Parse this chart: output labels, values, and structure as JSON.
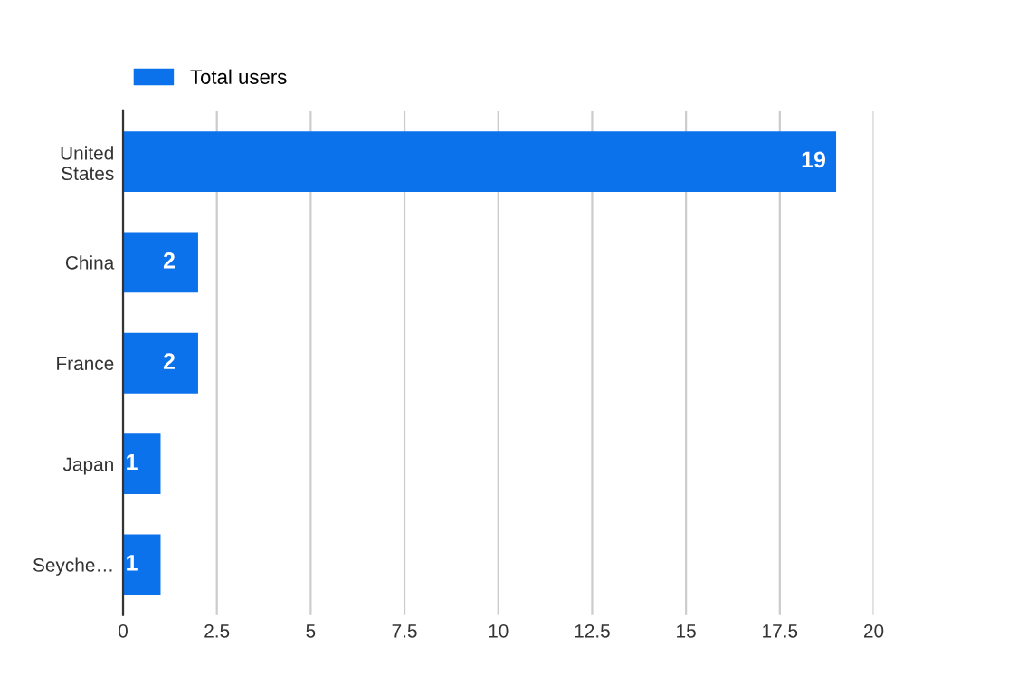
{
  "chart_data": {
    "type": "bar",
    "orientation": "horizontal",
    "categories": [
      "United States",
      "China",
      "France",
      "Japan",
      "Seyche…"
    ],
    "series": [
      {
        "name": "Total users",
        "color": "#0b72ec",
        "values": [
          19,
          2,
          2,
          1,
          1
        ]
      }
    ],
    "xlim": [
      0,
      20
    ],
    "xticks": [
      0,
      2.5,
      5,
      7.5,
      10,
      12.5,
      15,
      17.5,
      20
    ],
    "grid": "x",
    "legend": "top left",
    "data_labels": true
  }
}
